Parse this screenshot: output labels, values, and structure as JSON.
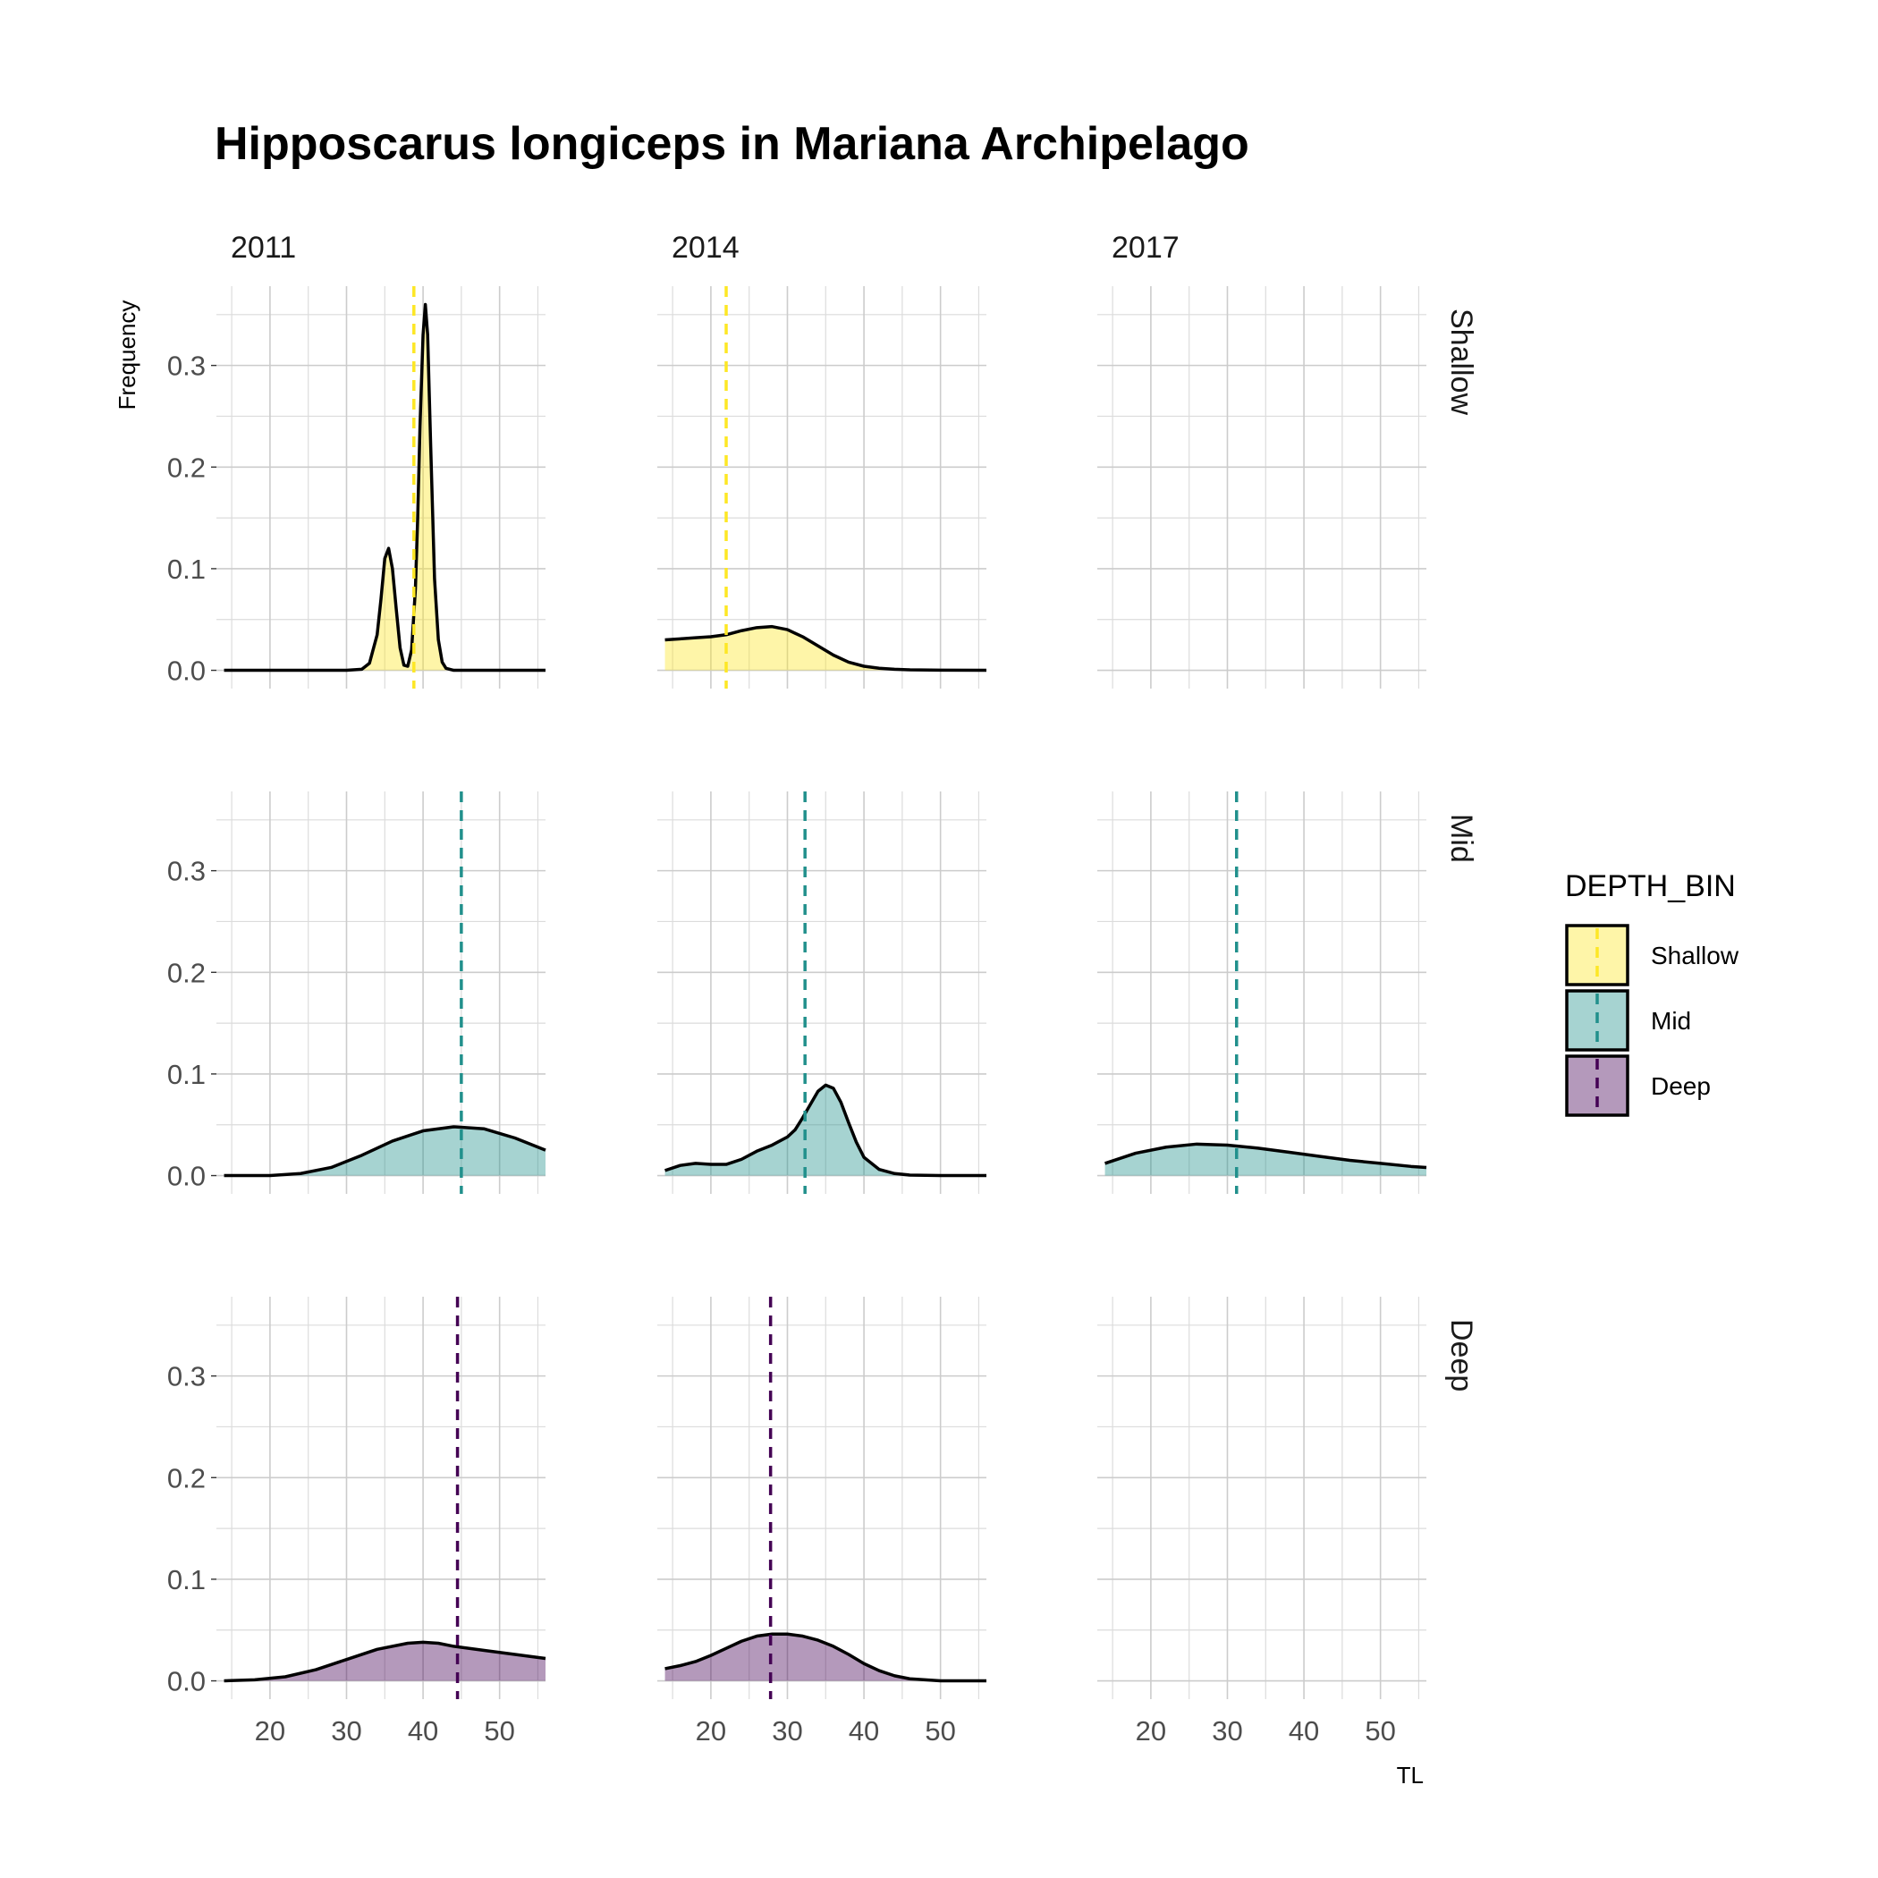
{
  "chart_data": {
    "type": "area",
    "title": "Hipposcarus longiceps in Mariana Archipelago",
    "xlabel": "TL",
    "ylabel": "Frequency",
    "xlim": [
      13,
      56
    ],
    "ylim": [
      -0.018,
      0.378
    ],
    "x_ticks": [
      20,
      30,
      40,
      50
    ],
    "y_ticks": [
      0.0,
      0.1,
      0.2,
      0.3
    ],
    "y_tick_labels": [
      "0.0",
      "0.1",
      "0.2",
      "0.3"
    ],
    "grid": true,
    "columns": [
      "2011",
      "2014",
      "2017"
    ],
    "rows": [
      "Shallow",
      "Mid",
      "Deep"
    ],
    "legend": {
      "title": "DEPTH_BIN",
      "placement": "right",
      "entries": [
        {
          "label": "Shallow",
          "fill": "#fde725",
          "line": "#fde725"
        },
        {
          "label": "Mid",
          "fill": "#21908c",
          "line": "#21908c"
        },
        {
          "label": "Deep",
          "fill": "#440154",
          "line": "#440154"
        }
      ]
    },
    "panels": [
      {
        "year": "2011",
        "depth": "Shallow",
        "x": [
          14,
          30,
          32,
          33,
          34,
          34.5,
          35,
          35.5,
          36,
          36.5,
          37,
          37.5,
          38,
          38.5,
          39,
          39.3,
          39.6,
          40,
          40.3,
          40.6,
          41,
          41.5,
          42,
          42.5,
          43,
          44,
          46,
          56
        ],
        "y": [
          0,
          0,
          0.001,
          0.007,
          0.035,
          0.07,
          0.11,
          0.12,
          0.1,
          0.06,
          0.022,
          0.005,
          0.004,
          0.02,
          0.08,
          0.15,
          0.24,
          0.33,
          0.36,
          0.33,
          0.22,
          0.09,
          0.03,
          0.008,
          0.002,
          0,
          0,
          0
        ],
        "mean": 38.8
      },
      {
        "year": "2014",
        "depth": "Shallow",
        "x": [
          14,
          16,
          18,
          20,
          22,
          24,
          26,
          28,
          30,
          32,
          34,
          36,
          38,
          40,
          42,
          44,
          46,
          50,
          56
        ],
        "y": [
          0.03,
          0.031,
          0.032,
          0.033,
          0.035,
          0.039,
          0.042,
          0.043,
          0.04,
          0.033,
          0.024,
          0.015,
          0.008,
          0.004,
          0.002,
          0.001,
          0.0005,
          0.0002,
          0
        ],
        "mean": 22
      },
      {
        "year": "2011",
        "depth": "Mid",
        "x": [
          14,
          20,
          24,
          28,
          32,
          36,
          40,
          44,
          48,
          52,
          56
        ],
        "y": [
          0,
          0,
          0.002,
          0.008,
          0.02,
          0.034,
          0.044,
          0.048,
          0.046,
          0.037,
          0.025
        ],
        "mean": 45
      },
      {
        "year": "2014",
        "depth": "Mid",
        "x": [
          14,
          16,
          18,
          20,
          22,
          24,
          26,
          28,
          30,
          31,
          32,
          33,
          34,
          35,
          36,
          37,
          38,
          39,
          40,
          42,
          44,
          46,
          50,
          56
        ],
        "y": [
          0.005,
          0.01,
          0.012,
          0.011,
          0.011,
          0.016,
          0.024,
          0.03,
          0.038,
          0.045,
          0.057,
          0.07,
          0.083,
          0.089,
          0.086,
          0.072,
          0.052,
          0.033,
          0.018,
          0.006,
          0.002,
          0.0005,
          0,
          0
        ],
        "mean": 32.3
      },
      {
        "year": "2017",
        "depth": "Mid",
        "x": [
          14,
          18,
          22,
          26,
          30,
          34,
          38,
          42,
          46,
          50,
          54,
          56
        ],
        "y": [
          0.012,
          0.022,
          0.028,
          0.031,
          0.03,
          0.027,
          0.023,
          0.019,
          0.015,
          0.012,
          0.009,
          0.008
        ],
        "mean": 31.2
      },
      {
        "year": "2011",
        "depth": "Deep",
        "x": [
          14,
          18,
          22,
          26,
          30,
          34,
          38,
          40,
          42,
          44,
          48,
          52,
          56
        ],
        "y": [
          0,
          0.001,
          0.004,
          0.011,
          0.021,
          0.031,
          0.037,
          0.038,
          0.037,
          0.034,
          0.03,
          0.026,
          0.022
        ],
        "mean": 44.5
      },
      {
        "year": "2014",
        "depth": "Deep",
        "x": [
          14,
          16,
          18,
          20,
          22,
          24,
          26,
          28,
          30,
          32,
          34,
          36,
          38,
          40,
          42,
          44,
          46,
          48,
          50,
          54,
          56
        ],
        "y": [
          0.012,
          0.015,
          0.019,
          0.025,
          0.032,
          0.039,
          0.044,
          0.046,
          0.046,
          0.044,
          0.04,
          0.034,
          0.026,
          0.017,
          0.01,
          0.005,
          0.002,
          0.001,
          0,
          0,
          0
        ],
        "mean": 27.8
      }
    ]
  }
}
